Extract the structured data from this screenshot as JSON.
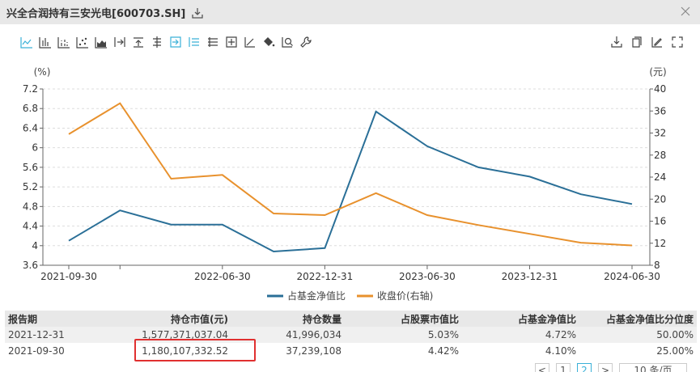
{
  "window": {
    "title": "兴全合润持有三安光电[600703.SH]",
    "download_icon": "download-icon",
    "close_icon": "close-icon"
  },
  "toolbar": {
    "left_icons": [
      "line-chart-icon",
      "bar-chart-icon",
      "stacked-bar-icon",
      "scatter-icon",
      "area-chart-icon",
      "align-right-icon",
      "align-top-icon",
      "center-axis-icon",
      "align-right-active-icon",
      "list-active-icon",
      "list-icon",
      "add-box-icon",
      "axis-pencil-icon",
      "fill-bucket-icon",
      "zoom-search-icon",
      "wrench-icon"
    ],
    "right_icons": [
      "save-download-icon",
      "copy-icon",
      "edit-icon",
      "fullscreen-icon"
    ]
  },
  "chart_data": {
    "type": "line",
    "title": "",
    "x": [
      "2021-09-30",
      "2021-12-31",
      "2022-03-31",
      "2022-06-30",
      "2022-09-30",
      "2022-12-31",
      "2023-03-31",
      "2023-06-30",
      "2023-09-30",
      "2023-12-31",
      "2024-03-31",
      "2024-06-30"
    ],
    "x_tick_labels": [
      "2021-09-30",
      "2022-06-30",
      "2022-12-31",
      "2023-06-30",
      "2023-12-31",
      "2024-06-30"
    ],
    "ylabel": "(%)",
    "ylabel_right": "(元)",
    "ylim": [
      3.6,
      7.2
    ],
    "ylim_right": [
      8,
      40
    ],
    "yticks": [
      "7.2",
      "6.8",
      "6.4",
      "6",
      "5.6",
      "5.2",
      "4.8",
      "4.4",
      "4",
      "3.6"
    ],
    "yticks_right": [
      "40",
      "36",
      "32",
      "28",
      "24",
      "20",
      "16",
      "12",
      "8"
    ],
    "grid": true,
    "legend_position": "bottom",
    "series": [
      {
        "name": "占基金净值比",
        "axis": "left",
        "color": "#2a6f97",
        "values": [
          4.1,
          4.72,
          4.43,
          4.43,
          3.88,
          3.95,
          6.74,
          6.03,
          5.6,
          5.41,
          5.05,
          4.85
        ]
      },
      {
        "name": "收盘价(右轴)",
        "axis": "right",
        "color": "#e8912d",
        "values": [
          31.8,
          37.4,
          23.7,
          24.4,
          17.4,
          17.1,
          21.1,
          17.1,
          15.3,
          13.7,
          12.1,
          11.6
        ]
      }
    ]
  },
  "table": {
    "headers": [
      "报告期",
      "持仓市值(元)",
      "持仓数量",
      "占股票市值比",
      "占基金净值比",
      "占基金净值比分位度"
    ],
    "rows": [
      [
        "2021-12-31",
        "1,577,371,037.04",
        "41,996,034",
        "5.03%",
        "4.72%",
        "50.00%"
      ],
      [
        "2021-09-30",
        "1,180,107,332.52",
        "37,239,108",
        "4.42%",
        "4.10%",
        "25.00%"
      ]
    ]
  },
  "pagination": {
    "prev": "<",
    "pages": [
      "1",
      "2"
    ],
    "current": "2",
    "next": ">",
    "page_size": "10 条/页"
  },
  "colors": {
    "series_blue": "#2a6f97",
    "series_orange": "#e8912d",
    "toolbar_active": "#3ab0d8",
    "highlight_box": "#e03030"
  }
}
